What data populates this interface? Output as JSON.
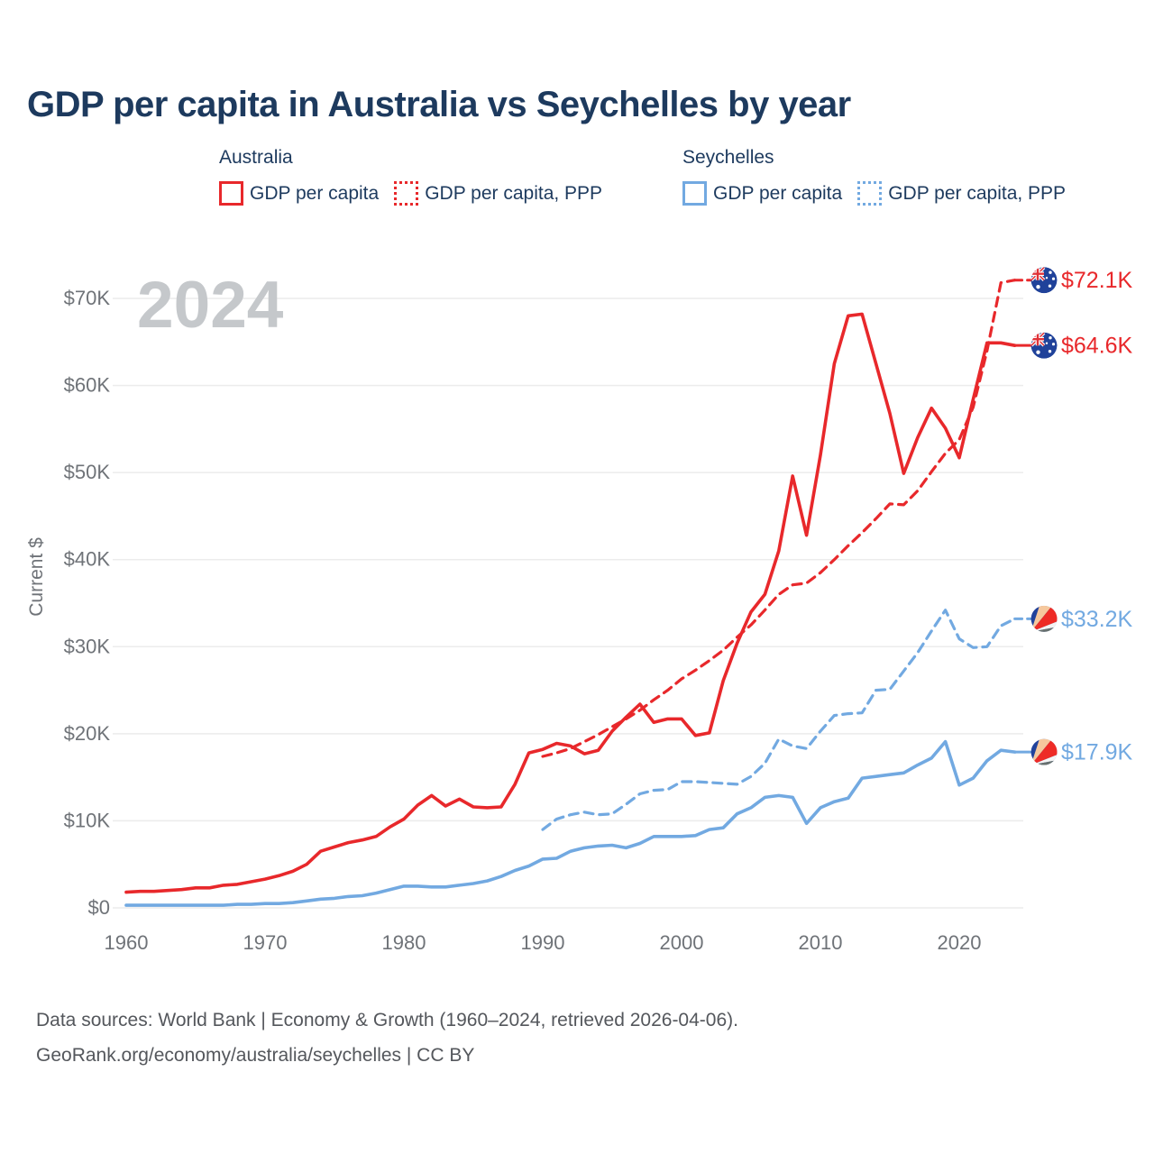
{
  "title": "GDP per capita in Australia vs Seychelles by year",
  "legend": {
    "groups": [
      {
        "name": "Australia",
        "items": [
          {
            "label": "GDP per capita",
            "style": "solid",
            "color": "#e8282b"
          },
          {
            "label": "GDP per capita, PPP",
            "style": "dotted",
            "color": "#e8282b"
          }
        ]
      },
      {
        "name": "Seychelles",
        "items": [
          {
            "label": "GDP per capita",
            "style": "solid",
            "color": "#72a9e1"
          },
          {
            "label": "GDP per capita, PPP",
            "style": "dotted",
            "color": "#72a9e1"
          }
        ]
      }
    ]
  },
  "chart_data": {
    "type": "line",
    "title": "GDP per capita in Australia vs Seychelles by year",
    "ylabel": "Current $",
    "watermark": "2024",
    "x_range": [
      1960,
      2024
    ],
    "ylim": [
      0,
      72.5
    ],
    "grid": "horizontal",
    "y_ticks": [
      {
        "value": 0,
        "label": "$0"
      },
      {
        "value": 10,
        "label": "$10K"
      },
      {
        "value": 20,
        "label": "$20K"
      },
      {
        "value": 30,
        "label": "$30K"
      },
      {
        "value": 40,
        "label": "$40K"
      },
      {
        "value": 50,
        "label": "$50K"
      },
      {
        "value": 60,
        "label": "$60K"
      },
      {
        "value": 70,
        "label": "$70K"
      }
    ],
    "x_ticks": [
      {
        "value": 1960,
        "label": "1960"
      },
      {
        "value": 1970,
        "label": "1970"
      },
      {
        "value": 1980,
        "label": "1980"
      },
      {
        "value": 1990,
        "label": "1990"
      },
      {
        "value": 2000,
        "label": "2000"
      },
      {
        "value": 2010,
        "label": "2010"
      },
      {
        "value": 2020,
        "label": "2020"
      }
    ],
    "series": [
      {
        "id": "australia-gdp-ppp",
        "country": "Australia",
        "name": "GDP per capita, PPP",
        "line": "dashed",
        "color": "#e8282b",
        "flag": "flag-aus",
        "end_label": "$72.1K",
        "end_value": 72.1,
        "x_start": 1990,
        "values": [
          17.4,
          17.8,
          18.3,
          19.1,
          19.9,
          20.8,
          21.7,
          22.7,
          23.9,
          25.0,
          26.3,
          27.3,
          28.4,
          29.6,
          31.1,
          32.5,
          34.2,
          36.0,
          37.1,
          37.3,
          38.5,
          40.0,
          41.6,
          43.1,
          44.7,
          46.4,
          46.3,
          47.9,
          50.1,
          52.2,
          53.8,
          57.5,
          64.0,
          71.8,
          72.1
        ]
      },
      {
        "id": "australia-gdp",
        "country": "Australia",
        "name": "GDP per capita",
        "line": "solid",
        "color": "#e8282b",
        "flag": "flag-aus",
        "end_label": "$64.6K",
        "end_value": 64.6,
        "x_start": 1960,
        "values": [
          1.8,
          1.9,
          1.9,
          2.0,
          2.1,
          2.3,
          2.3,
          2.6,
          2.7,
          3.0,
          3.3,
          3.7,
          4.2,
          5.0,
          6.5,
          7.0,
          7.5,
          7.8,
          8.2,
          9.3,
          10.2,
          11.8,
          12.9,
          11.7,
          12.5,
          11.6,
          11.5,
          11.6,
          14.2,
          17.8,
          18.2,
          18.9,
          18.6,
          17.7,
          18.1,
          20.3,
          21.9,
          23.4,
          21.3,
          21.7,
          21.7,
          19.8,
          20.1,
          26.1,
          30.4,
          34.0,
          36.0,
          41.0,
          49.6,
          42.8,
          52.0,
          62.5,
          68.0,
          68.2,
          62.5,
          56.8,
          49.9,
          54.0,
          57.4,
          55.1,
          51.7,
          58.4,
          64.9,
          64.9,
          64.6
        ]
      },
      {
        "id": "seychelles-gdp-ppp",
        "country": "Seychelles",
        "name": "GDP per capita, PPP",
        "line": "dashed",
        "color": "#72a9e1",
        "flag": "flag-syc",
        "end_label": "$33.2K",
        "end_value": 33.2,
        "x_start": 1990,
        "values": [
          9.0,
          10.2,
          10.7,
          11.0,
          10.7,
          10.8,
          11.9,
          13.1,
          13.5,
          13.6,
          14.5,
          14.5,
          14.4,
          14.3,
          14.2,
          15.1,
          16.6,
          19.4,
          18.6,
          18.3,
          20.3,
          22.1,
          22.3,
          22.4,
          25.0,
          25.1,
          27.2,
          29.3,
          31.8,
          34.2,
          30.9,
          29.9,
          30.0,
          32.4,
          33.2
        ]
      },
      {
        "id": "seychelles-gdp",
        "country": "Seychelles",
        "name": "GDP per capita",
        "line": "solid",
        "color": "#72a9e1",
        "flag": "flag-syc",
        "end_label": "$17.9K",
        "end_value": 17.9,
        "x_start": 1960,
        "values": [
          0.3,
          0.3,
          0.3,
          0.3,
          0.3,
          0.3,
          0.3,
          0.3,
          0.4,
          0.4,
          0.5,
          0.5,
          0.6,
          0.8,
          1.0,
          1.1,
          1.3,
          1.4,
          1.7,
          2.1,
          2.5,
          2.5,
          2.4,
          2.4,
          2.6,
          2.8,
          3.1,
          3.6,
          4.3,
          4.8,
          5.6,
          5.7,
          6.5,
          6.9,
          7.1,
          7.2,
          6.9,
          7.4,
          8.2,
          8.2,
          8.2,
          8.3,
          9.0,
          9.2,
          10.8,
          11.5,
          12.7,
          12.9,
          12.7,
          9.7,
          11.5,
          12.2,
          12.6,
          14.9,
          15.1,
          15.3,
          15.5,
          16.4,
          17.2,
          19.1,
          14.1,
          14.9,
          16.9,
          18.1,
          17.9
        ]
      }
    ]
  },
  "footer": {
    "line1": "Data sources: World Bank | Economy & Growth (1960–2024, retrieved 2026-04-06).",
    "line2": "GeoRank.org/economy/australia/seychelles | CC BY"
  }
}
